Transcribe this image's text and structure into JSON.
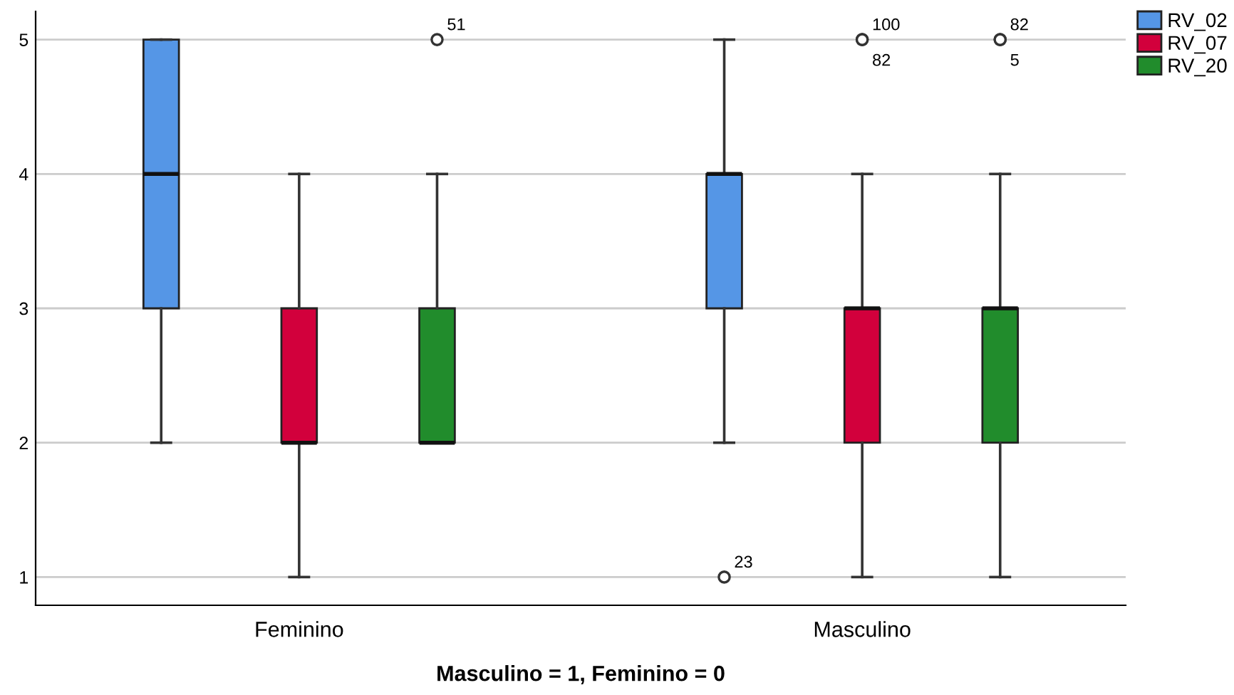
{
  "chart_data": {
    "type": "box",
    "xlabel": "Masculino = 1, Feminino = 0",
    "categories": [
      "Feminino",
      "Masculino"
    ],
    "series": [
      {
        "name": "RV_02",
        "color": "#5596e6",
        "boxes": [
          {
            "low": 2,
            "q1": 3,
            "median": 4,
            "q3": 5,
            "high": 5
          },
          {
            "low": 2,
            "q1": 3,
            "median": 4,
            "q3": 4,
            "high": 5,
            "outliers": [
              1
            ]
          }
        ]
      },
      {
        "name": "RV_07",
        "color": "#d2003c",
        "boxes": [
          {
            "low": 1,
            "q1": 2,
            "median": 2,
            "q3": 3,
            "high": 4
          },
          {
            "low": 1,
            "q1": 2,
            "median": 3,
            "q3": 3,
            "high": 4,
            "outliers": [
              5,
              5
            ]
          }
        ]
      },
      {
        "name": "RV_20",
        "color": "#218c2c",
        "boxes": [
          {
            "low": 2,
            "q1": 2,
            "median": 2,
            "q3": 3,
            "high": 4,
            "outliers": [
              5
            ]
          },
          {
            "low": 1,
            "q1": 2,
            "median": 3,
            "q3": 3,
            "high": 4,
            "outliers": [
              5,
              5
            ]
          }
        ]
      }
    ],
    "annotations": [
      "23",
      "100",
      "82",
      "51",
      "82",
      "5"
    ],
    "ylim": [
      0.79,
      5.21
    ],
    "yticks": [
      1,
      2,
      3,
      4,
      5
    ],
    "grid": "y",
    "legend": "top right"
  }
}
